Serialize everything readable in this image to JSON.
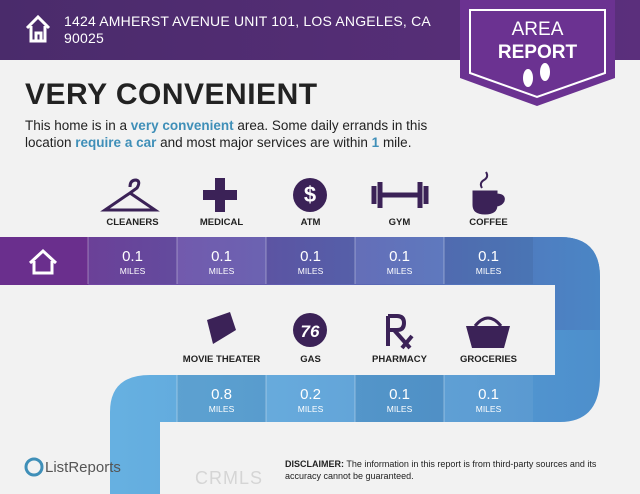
{
  "header": {
    "address_line1": "1424 AMHERST AVENUE UNIT 101, LOS ANGELES, CA",
    "address_line2": "90025"
  },
  "badge": {
    "line1": "AREA",
    "line2": "REPORT"
  },
  "title": "VERY CONVENIENT",
  "summary": [
    "This home is in a ",
    "very convenient",
    " area. Some daily errands in this location ",
    "require a car",
    " and most major services are within ",
    "1",
    " mile."
  ],
  "row1": [
    {
      "name": "CLEANERS",
      "distance": 0.1,
      "unit": "MILES"
    },
    {
      "name": "MEDICAL",
      "distance": 0.1,
      "unit": "MILES"
    },
    {
      "name": "ATM",
      "distance": 0.1,
      "unit": "MILES"
    },
    {
      "name": "GYM",
      "distance": 0.1,
      "unit": "MILES"
    },
    {
      "name": "COFFEE",
      "distance": 0.1,
      "unit": "MILES"
    }
  ],
  "row2": [
    {
      "name": "MOVIE THEATER",
      "distance": 0.8,
      "unit": "MILES"
    },
    {
      "name": "GAS",
      "distance": 0.2,
      "unit": "MILES"
    },
    {
      "name": "PHARMACY",
      "distance": 0.1,
      "unit": "MILES"
    },
    {
      "name": "GROCERIES",
      "distance": 0.1,
      "unit": "MILES"
    }
  ],
  "footer": {
    "brand": "ListReports",
    "disclaimer_label": "DISCLAIMER:",
    "disclaimer": " The information in this report is from third-party sources and its accuracy cannot be guaranteed.",
    "watermark": "CRMLS"
  }
}
